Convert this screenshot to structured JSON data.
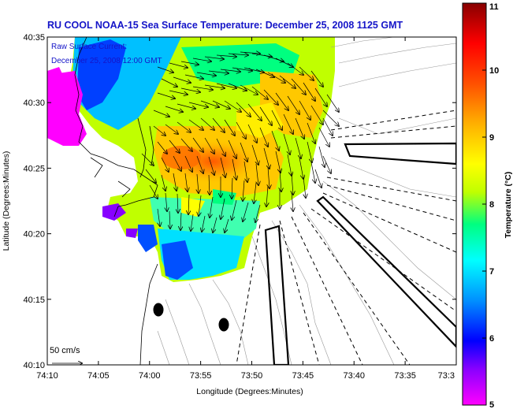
{
  "map": {
    "title": "RU COOL  NOAA-15  Sea Surface Temperature:  December 25, 2008 1125 GMT",
    "annotation_line1": "Raw Surface Current:",
    "annotation_line2": "December 25, 2008 12:00 GMT",
    "scale_label": "50 cm/s",
    "xlabel": "Longitude (Degrees:Minutes)",
    "ylabel": "Latitude (Degrees:Minutes)",
    "x_ticks": [
      "74:10",
      "74:05",
      "74:00",
      "73:55",
      "73:50",
      "73:45",
      "73:40",
      "73:35",
      "73:3"
    ],
    "y_ticks": [
      "40:35",
      "40:30",
      "40:25",
      "40:20",
      "40:15",
      "40:10"
    ],
    "colorbar": {
      "label": "Temperature (°C)",
      "min": 5,
      "max": 11,
      "ticks": [
        "5",
        "6",
        "7",
        "8",
        "9",
        "10",
        "11"
      ],
      "colors": [
        "#ff00ff",
        "#8800ff",
        "#0000ff",
        "#0090ff",
        "#00ffff",
        "#00ff80",
        "#c0ff00",
        "#ffff00",
        "#ffb000",
        "#ff5000",
        "#ff0000",
        "#880000"
      ]
    },
    "colors": {
      "land_line": "#000000",
      "bathymetry": "#999999",
      "arrow": "#000000"
    }
  }
}
